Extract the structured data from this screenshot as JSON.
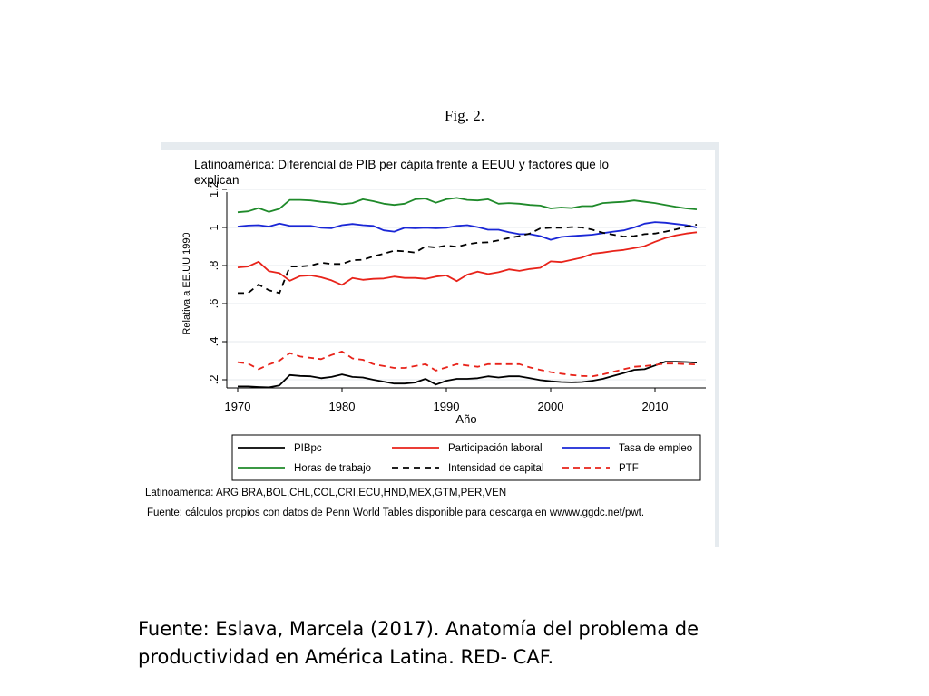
{
  "figure_label": "Fig. 2.",
  "chart_data": {
    "type": "line",
    "title": "Latinoamérica: Diferencial de PIB per cápita frente a EEUU y factores que lo explican",
    "title_lines": [
      "Latinoamérica: Diferencial de PIB per cápita frente a EEUU y factores que lo",
      "explican"
    ],
    "xlabel": "Año",
    "ylabel": "Relativa a EE.UU 1990",
    "xlim": [
      1970,
      2014
    ],
    "ylim": [
      0.15,
      1.25
    ],
    "xticks": [
      "1970",
      "1980",
      "1990",
      "2000",
      "2010"
    ],
    "yticks": [
      ".2",
      ".4",
      ".6",
      ".8",
      "1",
      "1.2"
    ],
    "grid": true,
    "legend_position": "bottom",
    "x": [
      1970,
      1971,
      1972,
      1973,
      1974,
      1975,
      1976,
      1977,
      1978,
      1979,
      1980,
      1981,
      1982,
      1983,
      1984,
      1985,
      1986,
      1987,
      1988,
      1989,
      1990,
      1991,
      1992,
      1993,
      1994,
      1995,
      1996,
      1997,
      1998,
      1999,
      2000,
      2001,
      2002,
      2003,
      2004,
      2005,
      2006,
      2007,
      2008,
      2009,
      2010,
      2011,
      2012,
      2013,
      2014
    ],
    "series": [
      {
        "name": "PIBpc",
        "color": "#000000",
        "dash": "solid",
        "values": [
          0.165,
          0.165,
          0.162,
          0.16,
          0.17,
          0.225,
          0.22,
          0.218,
          0.208,
          0.215,
          0.228,
          0.215,
          0.212,
          0.2,
          0.19,
          0.18,
          0.18,
          0.185,
          0.205,
          0.175,
          0.195,
          0.205,
          0.205,
          0.208,
          0.218,
          0.212,
          0.218,
          0.218,
          0.208,
          0.198,
          0.192,
          0.188,
          0.186,
          0.188,
          0.195,
          0.205,
          0.22,
          0.235,
          0.252,
          0.255,
          0.275,
          0.295,
          0.295,
          0.293,
          0.29
        ]
      },
      {
        "name": "Participación laboral",
        "color": "#e8231a",
        "dash": "solid",
        "values": [
          0.79,
          0.795,
          0.82,
          0.77,
          0.76,
          0.72,
          0.745,
          0.748,
          0.738,
          0.722,
          0.698,
          0.735,
          0.725,
          0.73,
          0.732,
          0.742,
          0.735,
          0.735,
          0.73,
          0.742,
          0.748,
          0.718,
          0.752,
          0.768,
          0.755,
          0.765,
          0.78,
          0.772,
          0.782,
          0.788,
          0.822,
          0.818,
          0.83,
          0.842,
          0.862,
          0.868,
          0.876,
          0.882,
          0.892,
          0.902,
          0.925,
          0.945,
          0.958,
          0.968,
          0.975
        ]
      },
      {
        "name": "Tasa de empleo",
        "color": "#1a27d6",
        "dash": "solid",
        "values": [
          1.005,
          1.01,
          1.012,
          1.005,
          1.02,
          1.008,
          1.008,
          1.008,
          0.998,
          0.996,
          1.012,
          1.018,
          1.012,
          1.008,
          0.985,
          0.978,
          0.998,
          0.996,
          0.998,
          0.996,
          0.998,
          1.008,
          1.012,
          1.002,
          0.988,
          0.988,
          0.975,
          0.965,
          0.965,
          0.955,
          0.935,
          0.95,
          0.955,
          0.958,
          0.962,
          0.97,
          0.978,
          0.985,
          1.0,
          1.02,
          1.028,
          1.025,
          1.018,
          1.012,
          1.0
        ]
      },
      {
        "name": "Horas de trabajo",
        "color": "#1f8a2a",
        "dash": "solid",
        "values": [
          1.08,
          1.085,
          1.102,
          1.082,
          1.098,
          1.145,
          1.145,
          1.142,
          1.135,
          1.13,
          1.122,
          1.128,
          1.148,
          1.138,
          1.125,
          1.118,
          1.125,
          1.148,
          1.152,
          1.13,
          1.148,
          1.155,
          1.145,
          1.142,
          1.148,
          1.125,
          1.128,
          1.125,
          1.118,
          1.115,
          1.1,
          1.105,
          1.102,
          1.112,
          1.112,
          1.128,
          1.132,
          1.135,
          1.142,
          1.135,
          1.128,
          1.118,
          1.108,
          1.1,
          1.095
        ]
      },
      {
        "name": "Intensidad de capital",
        "color": "#000000",
        "dash": "dashed",
        "values": [
          0.655,
          0.655,
          0.7,
          0.67,
          0.655,
          0.795,
          0.795,
          0.8,
          0.815,
          0.808,
          0.808,
          0.828,
          0.83,
          0.848,
          0.862,
          0.878,
          0.875,
          0.868,
          0.9,
          0.895,
          0.905,
          0.898,
          0.912,
          0.92,
          0.922,
          0.932,
          0.945,
          0.955,
          0.968,
          0.995,
          0.998,
          0.998,
          1.002,
          1.0,
          0.988,
          0.972,
          0.962,
          0.952,
          0.955,
          0.965,
          0.968,
          0.978,
          0.99,
          1.005,
          1.015
        ]
      },
      {
        "name": "PTF",
        "color": "#e8231a",
        "dash": "dashed",
        "values": [
          0.292,
          0.285,
          0.255,
          0.28,
          0.3,
          0.34,
          0.322,
          0.315,
          0.308,
          0.33,
          0.348,
          0.312,
          0.305,
          0.282,
          0.272,
          0.262,
          0.262,
          0.272,
          0.282,
          0.248,
          0.265,
          0.282,
          0.275,
          0.268,
          0.282,
          0.282,
          0.282,
          0.282,
          0.265,
          0.252,
          0.24,
          0.232,
          0.225,
          0.22,
          0.218,
          0.228,
          0.242,
          0.255,
          0.268,
          0.272,
          0.278,
          0.285,
          0.285,
          0.282,
          0.28
        ]
      }
    ],
    "notes": [
      "Latinoamérica: ARG,BRA,BOL,CHL,COL,CRI,ECU,HND,MEX,GTM,PER,VEN",
      "Fuente: cálculos propios con datos de Penn World Tables disponible para descarga en wwww.ggdc.net/pwt."
    ]
  },
  "source_citation": "Fuente: Eslava, Marcela (2017). Anatomía del problema de productividad en América Latina. RED- CAF."
}
